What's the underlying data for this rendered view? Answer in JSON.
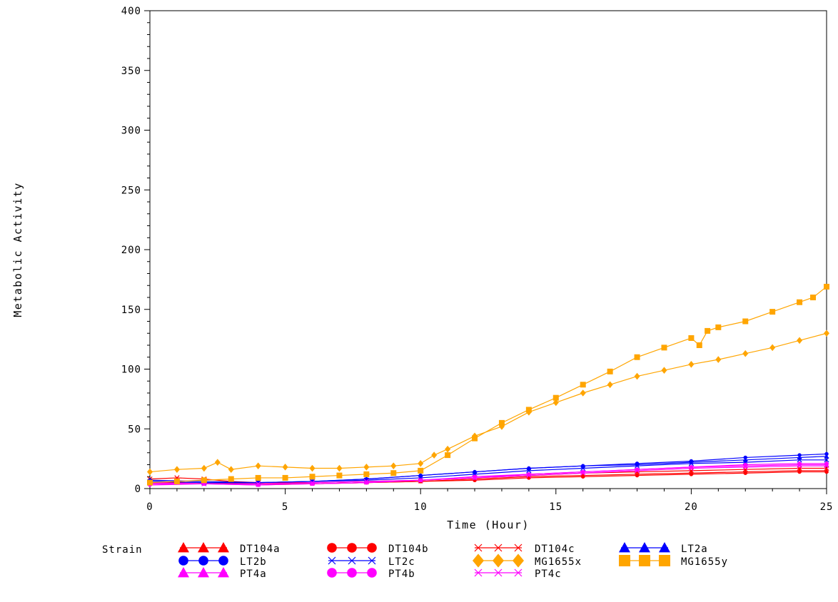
{
  "chart_data": {
    "type": "line",
    "title": "",
    "xlabel": "Time (Hour)",
    "ylabel": "Metabolic Activity",
    "xlim": [
      0,
      25
    ],
    "ylim": [
      0,
      400
    ],
    "x_ticks": [
      "0",
      "5",
      "10",
      "15",
      "20",
      "25"
    ],
    "y_ticks": [
      "0",
      "50",
      "100",
      "150",
      "200",
      "250",
      "300",
      "350",
      "400"
    ],
    "grid": false,
    "legend_title": "Strain",
    "legend_position": "bottom",
    "series": [
      {
        "name": "DT104a",
        "color": "#ff0000",
        "marker": "triangle",
        "x": [
          0,
          2,
          4,
          6,
          8,
          10,
          12,
          14,
          16,
          18,
          20,
          22,
          24,
          25
        ],
        "values": [
          4,
          4,
          4,
          4,
          5,
          6,
          8,
          10,
          11,
          12,
          13,
          14,
          15,
          15
        ]
      },
      {
        "name": "DT104b",
        "color": "#ff0000",
        "marker": "dot",
        "x": [
          0,
          2,
          4,
          6,
          8,
          10,
          12,
          14,
          16,
          18,
          20,
          22,
          24,
          25
        ],
        "values": [
          5,
          5,
          4,
          4,
          5,
          6,
          7,
          9,
          10,
          11,
          12,
          13,
          14,
          14
        ]
      },
      {
        "name": "DT104c",
        "color": "#ff0000",
        "marker": "x",
        "x": [
          0,
          1,
          2,
          3,
          4,
          6,
          8,
          10,
          12,
          14,
          16,
          18,
          20,
          22,
          24,
          25
        ],
        "values": [
          8,
          9,
          8,
          6,
          5,
          5,
          6,
          7,
          9,
          11,
          13,
          14,
          15,
          16,
          17,
          17
        ]
      },
      {
        "name": "LT2a",
        "color": "#0000ff",
        "marker": "triangle",
        "x": [
          0,
          2,
          4,
          6,
          8,
          10,
          12,
          14,
          16,
          18,
          20,
          22,
          24,
          25
        ],
        "values": [
          6,
          5,
          5,
          6,
          8,
          11,
          14,
          17,
          19,
          20,
          22,
          24,
          26,
          27
        ]
      },
      {
        "name": "LT2b",
        "color": "#0000ff",
        "marker": "dot",
        "x": [
          0,
          2,
          4,
          6,
          8,
          10,
          12,
          14,
          16,
          18,
          20,
          22,
          24,
          25
        ],
        "values": [
          7,
          6,
          5,
          6,
          8,
          11,
          14,
          17,
          19,
          21,
          23,
          26,
          28,
          29
        ]
      },
      {
        "name": "LT2c",
        "color": "#0000ff",
        "marker": "x",
        "x": [
          0,
          2,
          4,
          6,
          8,
          10,
          12,
          14,
          16,
          18,
          20,
          22,
          24,
          25
        ],
        "values": [
          6,
          5,
          5,
          6,
          7,
          9,
          12,
          15,
          17,
          19,
          21,
          22,
          24,
          24
        ]
      },
      {
        "name": "MG1655x",
        "color": "#ffa500",
        "marker": "diamond",
        "x": [
          0,
          1,
          2,
          2.5,
          3,
          4,
          5,
          6,
          7,
          8,
          9,
          10,
          10.5,
          11,
          12,
          13,
          14,
          15,
          16,
          17,
          18,
          19,
          20,
          21,
          22,
          23,
          24,
          25
        ],
        "values": [
          14,
          16,
          17,
          22,
          16,
          19,
          18,
          17,
          17,
          18,
          19,
          21,
          28,
          33,
          44,
          52,
          64,
          72,
          80,
          87,
          94,
          99,
          104,
          108,
          113,
          118,
          124,
          130
        ]
      },
      {
        "name": "MG1655y",
        "color": "#ffa500",
        "marker": "square",
        "x": [
          0,
          1,
          2,
          3,
          4,
          5,
          6,
          7,
          8,
          9,
          10,
          11,
          12,
          13,
          14,
          15,
          16,
          17,
          18,
          19,
          20,
          20.3,
          20.6,
          21,
          22,
          23,
          24,
          24.5,
          25
        ],
        "values": [
          5,
          6,
          7,
          8,
          9,
          9,
          10,
          11,
          12,
          13,
          15,
          28,
          42,
          55,
          66,
          76,
          87,
          98,
          110,
          118,
          126,
          120,
          132,
          135,
          140,
          148,
          156,
          160,
          169
        ]
      },
      {
        "name": "PT4a",
        "color": "#ff00ff",
        "marker": "triangle",
        "x": [
          0,
          2,
          4,
          6,
          8,
          10,
          12,
          14,
          16,
          18,
          20,
          22,
          24,
          25
        ],
        "values": [
          4,
          4,
          3,
          4,
          5,
          7,
          9,
          12,
          14,
          16,
          18,
          19,
          20,
          20
        ]
      },
      {
        "name": "PT4b",
        "color": "#ff00ff",
        "marker": "dot",
        "x": [
          0,
          2,
          4,
          6,
          8,
          10,
          12,
          14,
          16,
          18,
          20,
          22,
          24,
          25
        ],
        "values": [
          3,
          4,
          3,
          4,
          5,
          7,
          10,
          12,
          14,
          16,
          18,
          20,
          21,
          21
        ]
      },
      {
        "name": "PT4c",
        "color": "#ff00ff",
        "marker": "x",
        "x": [
          0,
          2,
          4,
          6,
          8,
          10,
          12,
          14,
          16,
          18,
          20,
          22,
          24,
          25
        ],
        "values": [
          5,
          4,
          4,
          5,
          6,
          7,
          9,
          11,
          13,
          15,
          17,
          18,
          19,
          19
        ]
      }
    ]
  }
}
